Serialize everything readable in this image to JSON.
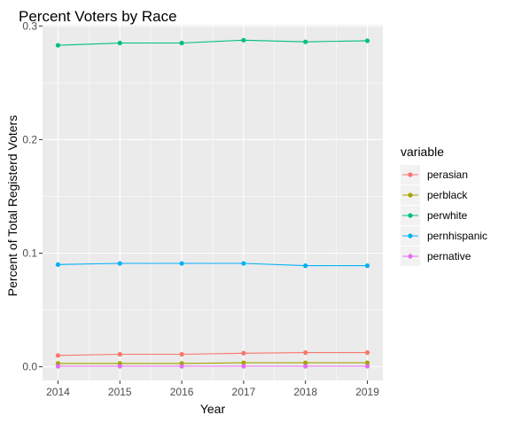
{
  "chart_data": {
    "type": "line",
    "title": "Percent Voters by Race",
    "xlabel": "Year",
    "ylabel": "Percent of Total Registerd Voters",
    "x": [
      2014,
      2015,
      2016,
      2017,
      2018,
      2019
    ],
    "x_ticks": [
      "2014",
      "2015",
      "2016",
      "2017",
      "2018",
      "2019"
    ],
    "ylim": [
      -0.012,
      0.301
    ],
    "y_ticks": [
      0.0,
      0.1,
      0.2,
      0.3
    ],
    "y_tick_labels": [
      "0.0",
      "0.1",
      "0.2",
      "0.3"
    ],
    "grid": true,
    "legend_title": "variable",
    "legend_position": "right",
    "series": [
      {
        "name": "perasian",
        "color": "#F8766D",
        "values": [
          0.01,
          0.011,
          0.011,
          0.012,
          0.0125,
          0.0125
        ]
      },
      {
        "name": "perblack",
        "color": "#A3A500",
        "values": [
          0.003,
          0.003,
          0.003,
          0.0035,
          0.0035,
          0.0035
        ]
      },
      {
        "name": "perwhite",
        "color": "#00BF7D",
        "values": [
          0.283,
          0.285,
          0.285,
          0.2875,
          0.286,
          0.287
        ]
      },
      {
        "name": "pernhispanic",
        "color": "#00B0F6",
        "values": [
          0.09,
          0.091,
          0.091,
          0.091,
          0.089,
          0.089
        ]
      },
      {
        "name": "pernative",
        "color": "#E76BF3",
        "values": [
          0.0005,
          0.0005,
          0.0005,
          0.0005,
          0.0005,
          0.0005
        ]
      }
    ]
  }
}
